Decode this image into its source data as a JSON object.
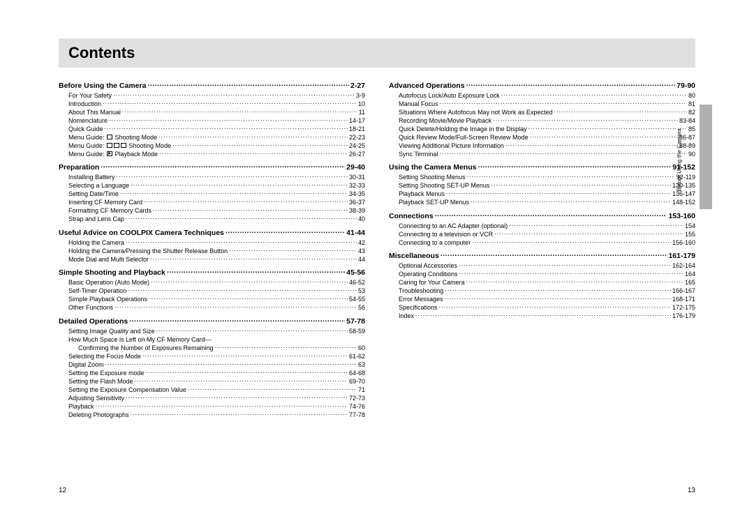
{
  "title": "Contents",
  "page_left": "12",
  "page_right": "13",
  "side_tab": "Before Using the Camera",
  "left_col": [
    {
      "title": "Before Using the Camera",
      "page": "2-27",
      "items": [
        {
          "label": "For Your Safety",
          "page": "3-9"
        },
        {
          "label": "Introduction",
          "page": "10"
        },
        {
          "label": "About This Manual",
          "page": "11"
        },
        {
          "label": "Nomenclature",
          "page": "14-17"
        },
        {
          "label": "Quick Guide",
          "page": "18-21"
        },
        {
          "label": "Menu Guide: ",
          "icon": "rec",
          "label2": " Shooting Mode",
          "page": "22-23"
        },
        {
          "label": "Menu Guide: ",
          "icon": "rec3",
          "label2": " Shooting Mode",
          "page": "24-25"
        },
        {
          "label": "Menu Guide: ",
          "icon": "play",
          "label2": " Playback Mode",
          "page": "26-27"
        }
      ]
    },
    {
      "title": "Preparation",
      "page": "29-40",
      "items": [
        {
          "label": "Installing Battery",
          "page": "30-31"
        },
        {
          "label": "Selecting a Language",
          "page": "32-33"
        },
        {
          "label": "Setting Date/Time",
          "page": "34-35"
        },
        {
          "label": "Inserting CF Memory Card",
          "page": "36-37"
        },
        {
          "label": "Formatting CF Memory Cards",
          "page": "38-39"
        },
        {
          "label": "Strap and Lens Cap",
          "page": "40"
        }
      ]
    },
    {
      "title": "Useful Advice on COOLPIX Camera Techniques",
      "page": "41-44",
      "items": [
        {
          "label": "Holding the Camera",
          "page": "42"
        },
        {
          "label": "Holding the Camera/Pressing the Shutter Release Button",
          "page": "43"
        },
        {
          "label": "Mode Dial and Multi Selector",
          "page": "44"
        }
      ]
    },
    {
      "title": "Simple Shooting and Playback",
      "page": "45-56",
      "items": [
        {
          "label": "Basic Operation (Auto Mode)",
          "page": "46-52"
        },
        {
          "label": "Self-Timer Operation",
          "page": "53"
        },
        {
          "label": "Simple Playback Operations",
          "page": "54-55"
        },
        {
          "label": "Other Functions",
          "page": "56"
        }
      ]
    },
    {
      "title": "Detailed Operations",
      "page": "57-78",
      "items": [
        {
          "label": "Setting Image Quality and Size",
          "page": "58-59"
        },
        {
          "label": "How Much Space is Left on My CF Memory Card—",
          "nopage": true
        },
        {
          "label": "Confirming the Number of Exposures Remaining",
          "page": "60",
          "sub": true
        },
        {
          "label": "Selecting the Focus Mode",
          "page": "61-62"
        },
        {
          "label": "Digital Zoom",
          "page": "63"
        },
        {
          "label": "Setting the Exposure mode",
          "page": "64-68"
        },
        {
          "label": "Setting the Flash Mode",
          "page": "69-70"
        },
        {
          "label": "Setting the Exposure Compensation Value",
          "page": "71"
        },
        {
          "label": "Adjusting Sensitivity",
          "page": "72-73"
        },
        {
          "label": "Playback",
          "page": "74-76"
        },
        {
          "label": "Deleting Photographs",
          "page": "77-78"
        }
      ]
    }
  ],
  "right_col": [
    {
      "title": "Advanced Operations",
      "page": "79-90",
      "items": [
        {
          "label": "Autofocus Lock/Auto Exposure Lock",
          "page": "80"
        },
        {
          "label": "Manual Focus",
          "page": "81"
        },
        {
          "label": "Situations Where Autofocus May not Work as Expected",
          "page": "82"
        },
        {
          "label": "Recording Movie/Movie Playback",
          "page": "83-84"
        },
        {
          "label": "Quick Delete/Holding the Image in the Display",
          "page": "85"
        },
        {
          "label": "Quick Review Mode/Full-Screen Review Mode",
          "page": "86-87"
        },
        {
          "label": "Viewing Additional Picture Information",
          "page": "88-89"
        },
        {
          "label": "Sync Terminal",
          "page": "90"
        }
      ]
    },
    {
      "title": "Using the Camera Menus",
      "page": "91-152",
      "items": [
        {
          "label": "Setting Shooting Menus",
          "page": "92-119"
        },
        {
          "label": "Setting Shooting SET-UP Menus",
          "page": "120-135"
        },
        {
          "label": "Playback Menus",
          "page": "136-147"
        },
        {
          "label": "Playback SET-UP Menus",
          "page": "148-152"
        }
      ]
    },
    {
      "title": "Connections",
      "page": "153-160",
      "items": [
        {
          "label": "Connecting to an AC Adapter (optional)",
          "page": "154"
        },
        {
          "label": "Connecting to a television or VCR",
          "page": "155"
        },
        {
          "label": "Connecting to a computer",
          "page": "156-160"
        }
      ]
    },
    {
      "title": "Miscellaneous",
      "page": "161-179",
      "items": [
        {
          "label": "Optional Accessories",
          "page": "162-164"
        },
        {
          "label": "Operating Conditions",
          "page": "164"
        },
        {
          "label": "Caring for Your Camera",
          "page": "165"
        },
        {
          "label": "Troubleshooting",
          "page": "166-167"
        },
        {
          "label": "Error Messages",
          "page": "168-171"
        },
        {
          "label": "Specifications",
          "page": "172-175"
        },
        {
          "label": "Index",
          "page": "176-179"
        }
      ]
    }
  ]
}
